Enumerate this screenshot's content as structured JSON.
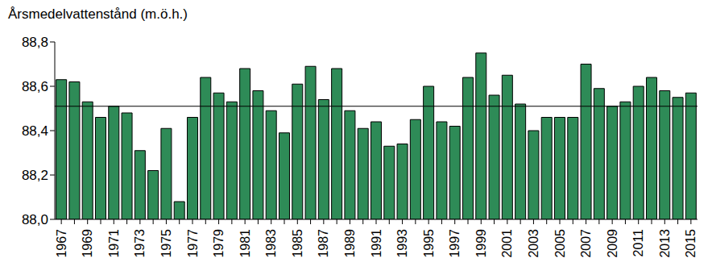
{
  "chart_data": {
    "type": "bar",
    "title": "Årsmedelvattenstånd (m.ö.h.)",
    "categories": [
      "1967",
      null,
      "1969",
      null,
      "1971",
      null,
      "1973",
      null,
      "1975",
      null,
      "1977",
      null,
      "1979",
      null,
      "1981",
      null,
      "1983",
      null,
      "1985",
      null,
      "1987",
      null,
      "1989",
      null,
      "1991",
      null,
      "1993",
      null,
      "1995",
      null,
      "1997",
      null,
      "1999",
      null,
      "2001",
      null,
      "2003",
      null,
      "2005",
      null,
      "2007",
      null,
      "2009",
      null,
      "2011",
      null,
      "2013",
      null,
      "2015"
    ],
    "values": [
      88.63,
      88.62,
      88.53,
      88.46,
      88.51,
      88.48,
      88.31,
      88.22,
      88.41,
      88.08,
      88.46,
      88.64,
      88.57,
      88.53,
      88.68,
      88.58,
      88.49,
      88.39,
      88.61,
      88.69,
      88.54,
      88.68,
      88.49,
      88.41,
      88.44,
      88.33,
      88.34,
      88.45,
      88.6,
      88.44,
      88.42,
      88.64,
      88.75,
      88.56,
      88.65,
      88.52,
      88.4,
      88.46,
      88.46,
      88.46,
      88.7,
      88.59,
      88.51,
      88.53,
      88.6,
      88.64,
      88.58,
      88.55,
      88.57
    ],
    "mean": 88.51,
    "color": "#2e8b57",
    "ylim": [
      88.0,
      88.8
    ],
    "yticks": [
      {
        "value": 88.0,
        "label": "88,0"
      },
      {
        "value": 88.2,
        "label": "88,2"
      },
      {
        "value": 88.4,
        "label": "88,4"
      },
      {
        "value": 88.6,
        "label": "88,6"
      },
      {
        "value": 88.8,
        "label": "88,8"
      }
    ],
    "grid": false
  }
}
